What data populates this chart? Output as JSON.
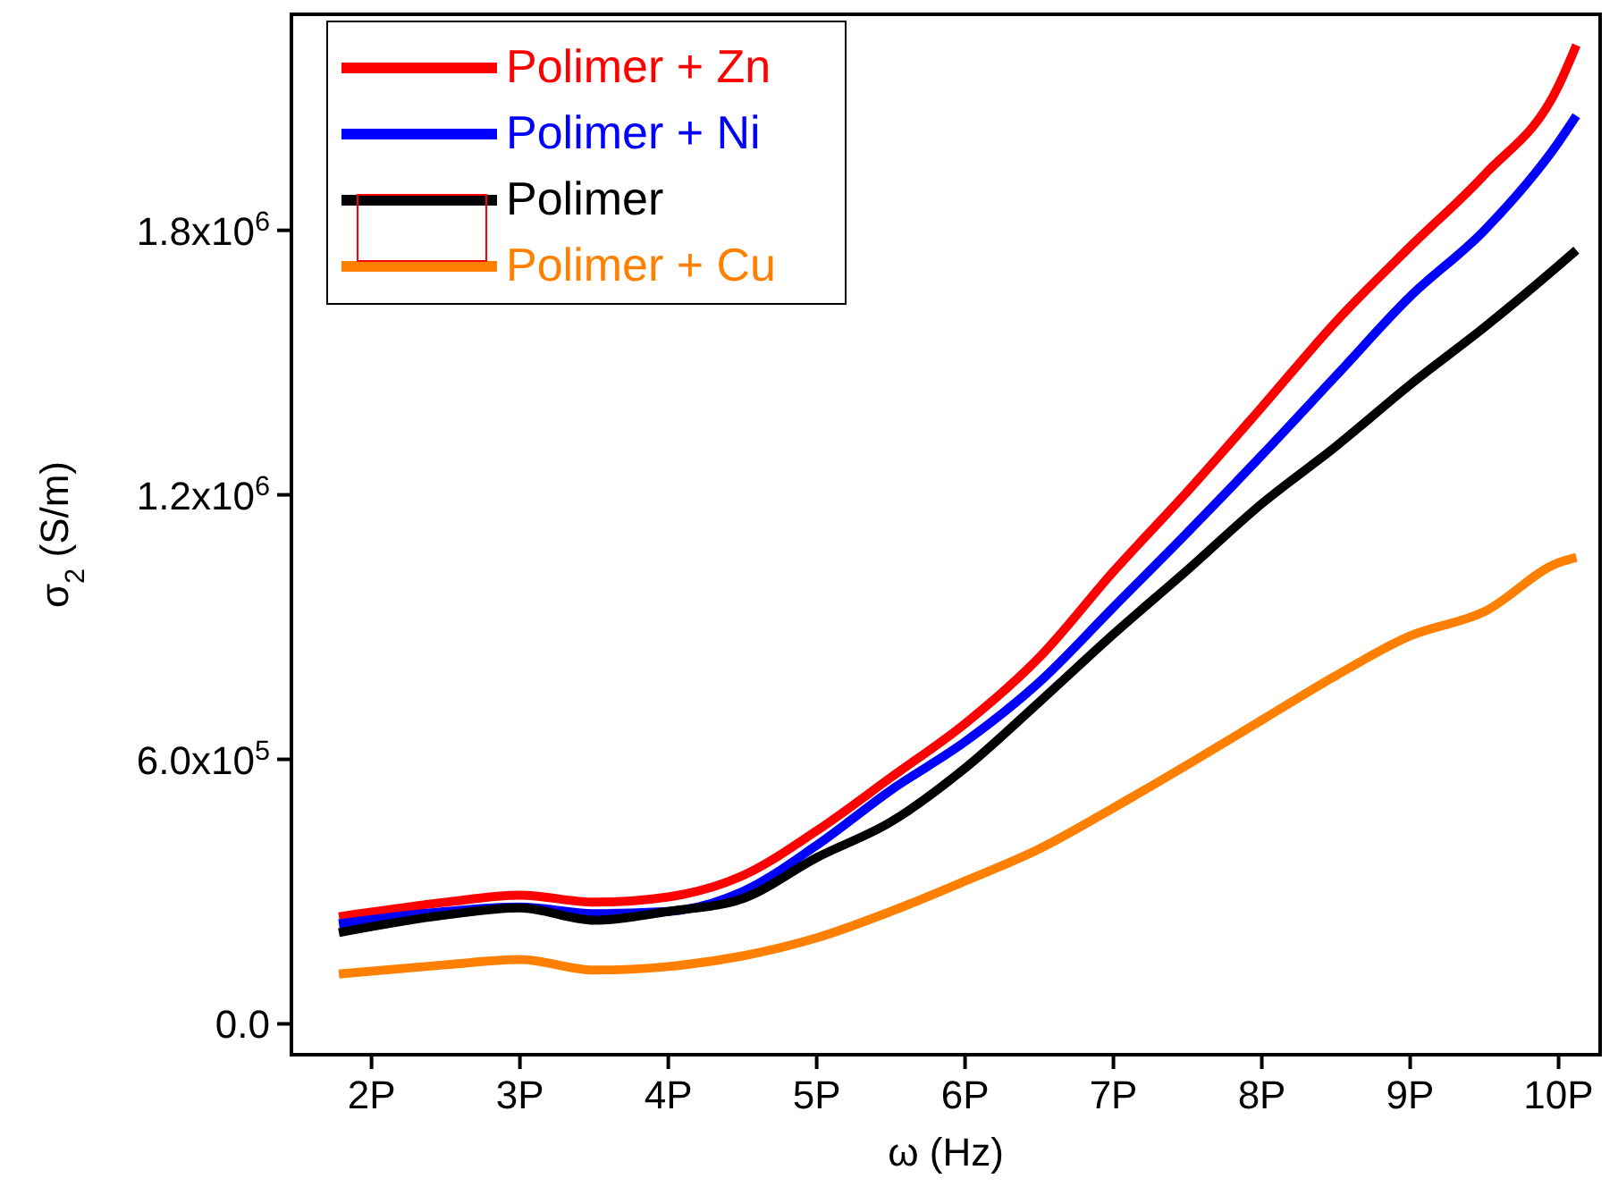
{
  "chart_data": {
    "type": "line",
    "xlabel": "ω (Hz)",
    "ylabel": "σ$_{2}$ (S/m)",
    "xlim": [
      1.46,
      10.28
    ],
    "ylim": [
      -70000,
      2290000
    ],
    "xticks": [
      {
        "value": 2,
        "label": "2P"
      },
      {
        "value": 3,
        "label": "3P"
      },
      {
        "value": 4,
        "label": "4P"
      },
      {
        "value": 5,
        "label": "5P"
      },
      {
        "value": 6,
        "label": "6P"
      },
      {
        "value": 7,
        "label": "7P"
      },
      {
        "value": 8,
        "label": "8P"
      },
      {
        "value": 9,
        "label": "9P"
      },
      {
        "value": 10,
        "label": "10P"
      }
    ],
    "yticks": [
      {
        "value": 0,
        "label": "0.0"
      },
      {
        "value": 600000,
        "label": "6.0x10$^{5}$"
      },
      {
        "value": 1200000,
        "label": "1.2x10$^{6}$"
      },
      {
        "value": 1800000,
        "label": "1.8x10$^{6}$"
      }
    ],
    "legend": "top left",
    "grid": false,
    "line_style": "solid",
    "x": [
      1.78,
      2.5,
      3,
      3.5,
      4,
      4.5,
      5,
      5.5,
      6,
      6.5,
      7,
      7.5,
      8,
      8.5,
      9,
      9.5,
      10,
      10.12
    ],
    "series": [
      {
        "name": "Polimer + Zn",
        "color": "#ff0000",
        "values": [
          243000,
          276000,
          292000,
          276000,
          288000,
          336000,
          438000,
          559000,
          681000,
          831000,
          1026000,
          1208000,
          1399000,
          1593000,
          1763000,
          1926000,
          2128000,
          2220000
        ]
      },
      {
        "name": "Polimer + Ni",
        "color": "#0000ff",
        "values": [
          227000,
          255000,
          265000,
          250000,
          255000,
          300000,
          405000,
          530000,
          640000,
          775000,
          945000,
          1115000,
          1290000,
          1470000,
          1650000,
          1800000,
          2000000,
          2060000
        ]
      },
      {
        "name": "Polimer",
        "color": "#000000",
        "values": [
          207000,
          247000,
          263000,
          235000,
          255000,
          284000,
          377000,
          458000,
          580000,
          730000,
          884000,
          1030000,
          1180000,
          1310000,
          1450000,
          1580000,
          1720000,
          1755000
        ]
      },
      {
        "name": "Polimer + Cu",
        "color": "#ff8000",
        "values": [
          113000,
          134000,
          146000,
          122000,
          130000,
          154000,
          195000,
          255000,
          324000,
          397000,
          490000,
          588000,
          689000,
          790000,
          880000,
          935000,
          1046000,
          1058000
        ]
      }
    ]
  }
}
